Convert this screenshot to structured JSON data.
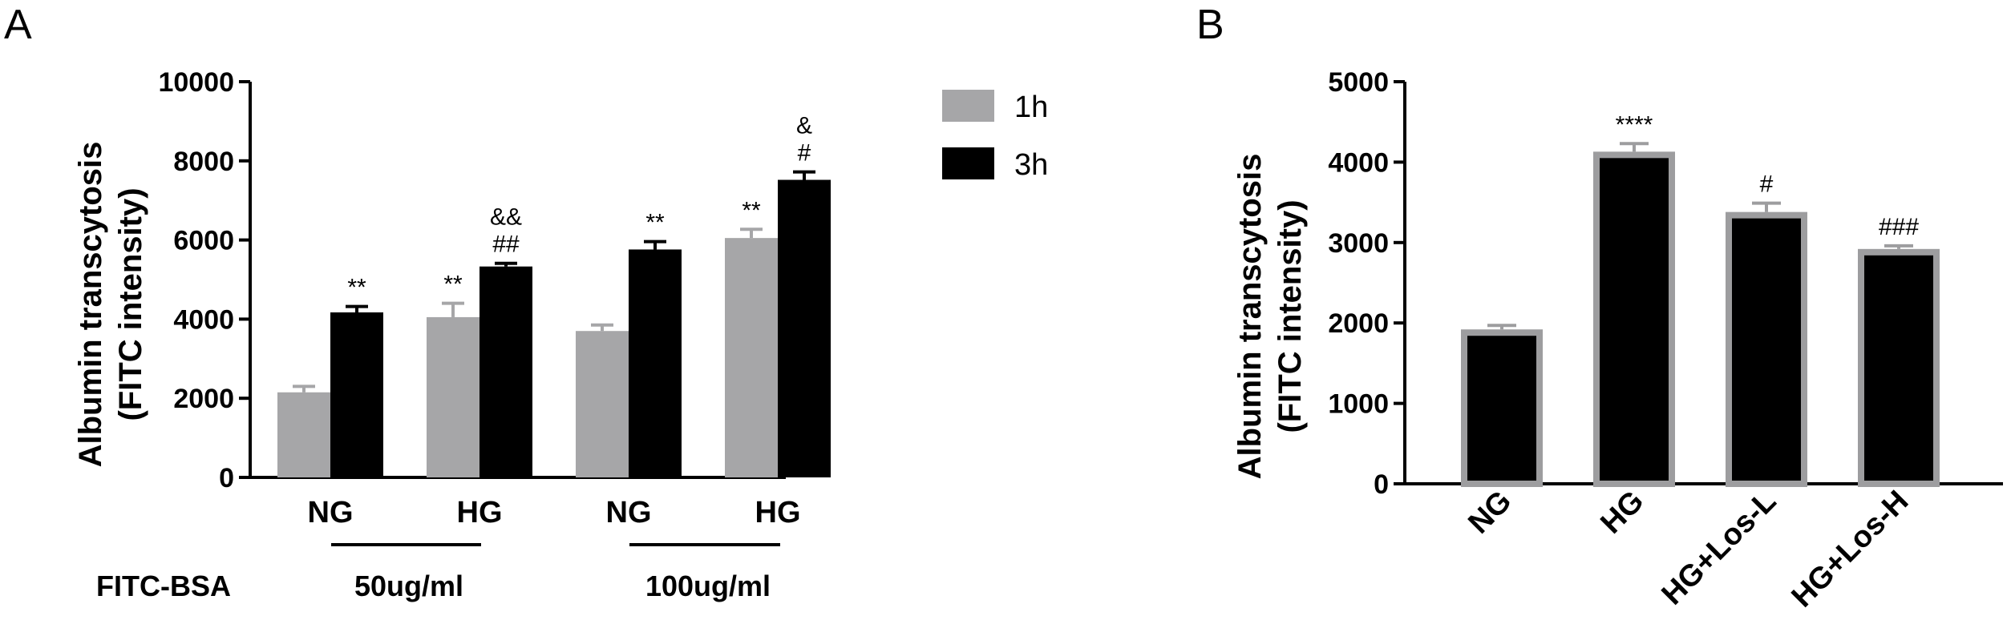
{
  "colors": {
    "light": "#a6a6a8",
    "dark": "#000000",
    "edge": "#9d9d9f"
  },
  "panels": {
    "a": {
      "label": "A"
    },
    "b": {
      "label": "B"
    }
  },
  "chart_data": [
    {
      "panel": "A",
      "type": "bar",
      "ylabel_line1": "Albumin transcytosis",
      "ylabel_line2": "(FITC intensity)",
      "xlabel": "",
      "ylim": [
        0,
        10000
      ],
      "yticks": [
        0,
        2000,
        4000,
        6000,
        8000,
        10000
      ],
      "categories": [
        "NG",
        "HG",
        "NG",
        "HG"
      ],
      "legend_position": "top-right",
      "series": [
        {
          "name": "1h",
          "color": "#a6a6a8",
          "values": [
            2150,
            4050,
            3700,
            6050
          ],
          "errors": [
            150,
            350,
            150,
            220
          ],
          "annotations": [
            "",
            "**",
            "",
            "**"
          ]
        },
        {
          "name": "3h",
          "color": "#000000",
          "values": [
            4170,
            5330,
            5760,
            7520
          ],
          "errors": [
            150,
            80,
            200,
            200
          ],
          "annotations": [
            "**",
            "&&\n##",
            "**",
            "&\n#"
          ]
        }
      ],
      "groups": {
        "row_label": "FITC-BSA",
        "labels": [
          "50ug/ml",
          "100ug/ml"
        ]
      }
    },
    {
      "panel": "B",
      "type": "bar",
      "ylabel_line1": "Albumin transcytosis",
      "ylabel_line2": "(FITC intensity)",
      "xlabel": "",
      "ylim": [
        0,
        5000
      ],
      "yticks": [
        0,
        1000,
        2000,
        3000,
        4000,
        5000
      ],
      "categories": [
        "NG",
        "HG",
        "HG+Los-L",
        "HG+Los-H"
      ],
      "values": [
        1920,
        4130,
        3380,
        2920
      ],
      "errors": [
        50,
        100,
        110,
        40
      ],
      "annotations": [
        "",
        "****",
        "#",
        "###"
      ]
    }
  ]
}
